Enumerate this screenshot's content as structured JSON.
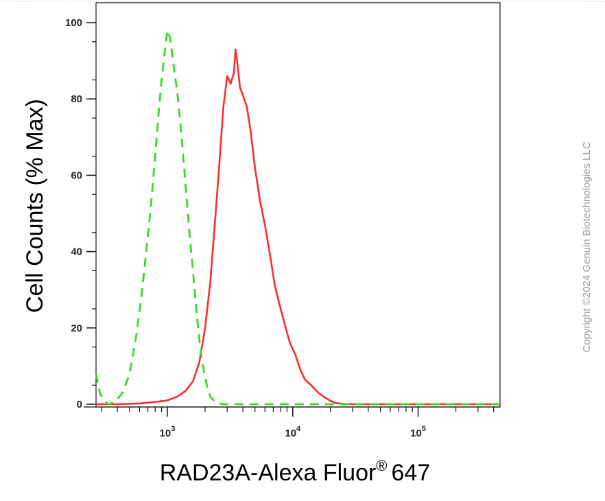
{
  "chart_data": {
    "type": "line",
    "title": "",
    "xlabel": "RAD23A-Alexa Fluor",
    "xlabel_superscript": "®",
    "xlabel_suffix": "647",
    "ylabel": "Cell Counts (% Max)",
    "xscale": "log",
    "xlim": [
      270,
      450000
    ],
    "ylim": [
      0,
      100
    ],
    "x_ticks": [
      {
        "base": "10",
        "exp": "3",
        "value": 1000
      },
      {
        "base": "10",
        "exp": "4",
        "value": 10000
      },
      {
        "base": "10",
        "exp": "5",
        "value": 100000
      }
    ],
    "y_ticks": [
      "0",
      "20",
      "40",
      "60",
      "80",
      "100"
    ],
    "grid": false,
    "legend": "none",
    "series": [
      {
        "color": "#ff2a2a",
        "style": "solid",
        "x": [
          270,
          400,
          600,
          800,
          1000,
          1200,
          1400,
          1600,
          1800,
          2000,
          2200,
          2400,
          2600,
          2800,
          3000,
          3200,
          3400,
          3500,
          3600,
          3800,
          4000,
          4300,
          4600,
          5000,
          5500,
          6000,
          6600,
          7200,
          8000,
          8800,
          9500,
          10500,
          11500,
          12500,
          14000,
          16000,
          18000,
          20000,
          22000,
          25000,
          30000,
          40000,
          60000,
          100000,
          200000,
          450000
        ],
        "y": [
          0,
          0,
          0.2,
          0.6,
          1,
          2,
          3.5,
          6,
          11,
          20,
          32,
          48,
          63,
          78,
          86,
          84,
          87,
          93,
          90,
          83,
          81,
          78,
          72,
          62,
          53,
          47,
          39,
          31,
          25,
          20,
          16,
          13,
          9,
          6.5,
          5,
          3,
          1.8,
          0.9,
          0.3,
          0.1,
          0,
          0,
          0,
          0,
          0,
          0
        ]
      },
      {
        "color": "#33dd22",
        "style": "dashed",
        "x": [
          270,
          290,
          310,
          340,
          380,
          440,
          500,
          560,
          620,
          680,
          740,
          800,
          850,
          900,
          950,
          1000,
          1050,
          1100,
          1150,
          1200,
          1300,
          1400,
          1500,
          1600,
          1700,
          1800,
          1900,
          2000,
          2100,
          2200,
          2400,
          2600,
          2800,
          3000,
          4000,
          10000,
          450000
        ],
        "y": [
          8,
          3,
          1,
          0,
          0.5,
          3,
          8,
          17,
          28,
          40,
          52,
          65,
          76,
          85,
          92,
          98,
          96,
          91,
          86,
          82,
          70,
          57,
          45,
          35,
          25,
          17,
          11,
          7,
          4,
          2,
          0.6,
          0.2,
          0,
          0,
          0,
          0,
          0
        ]
      }
    ]
  },
  "copyright": "Copyright ©2024 Genuin Biotechnologies LLC"
}
